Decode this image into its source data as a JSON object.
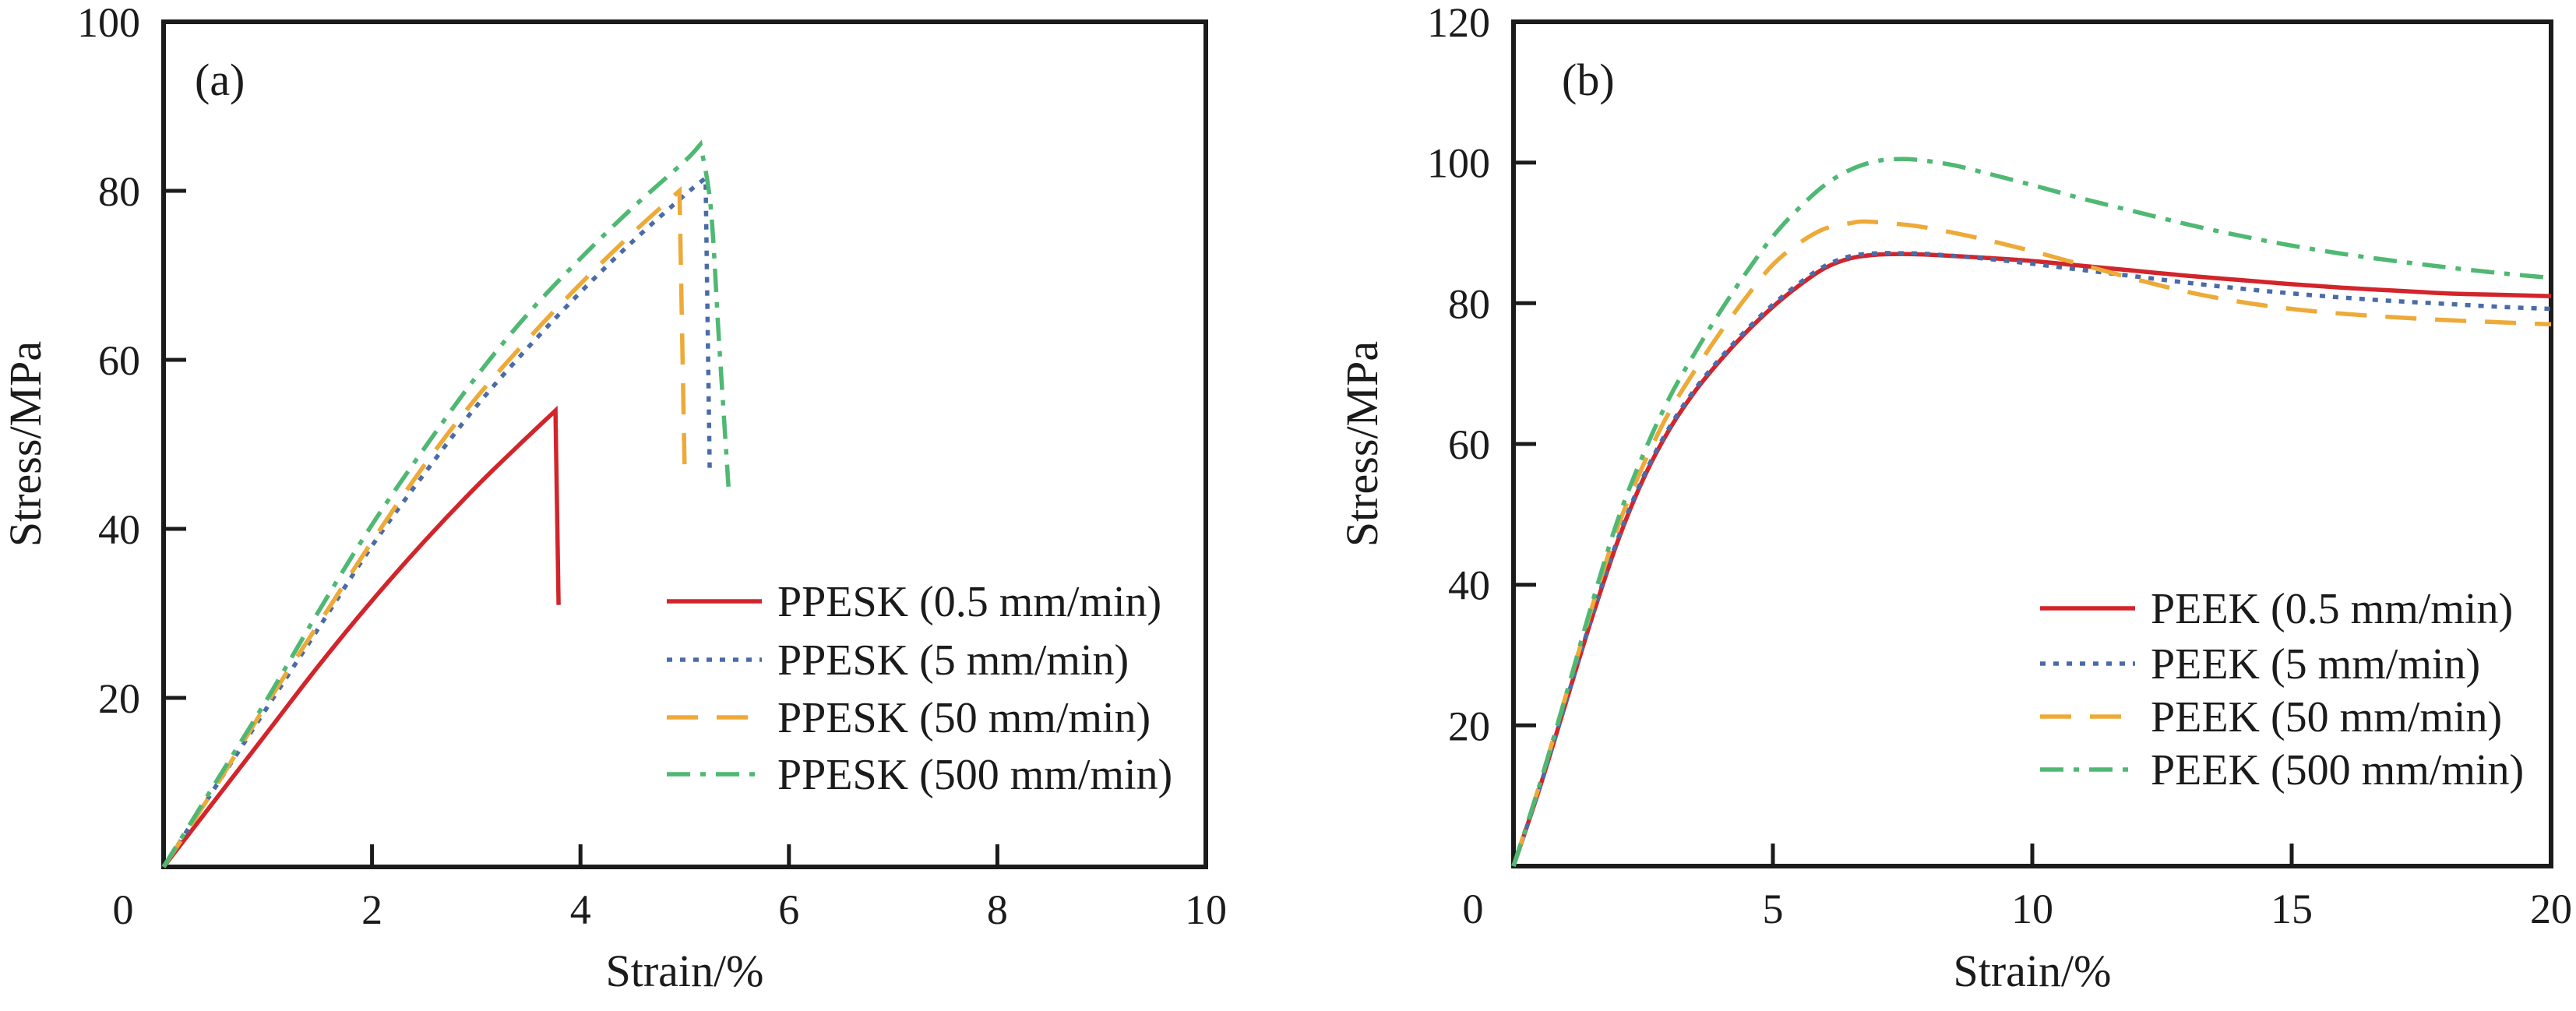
{
  "figure": {
    "background": "#ffffff",
    "frame_color": "#1b1b1b",
    "text_color": "#1b1b1b"
  },
  "chart_data": [
    {
      "panel": "a",
      "type": "line",
      "title": "(a)",
      "xlabel": "Strain/%",
      "ylabel": "Stress/MPa",
      "xlim": [
        0,
        10
      ],
      "ylim": [
        0,
        100
      ],
      "xticks": [
        0,
        2,
        4,
        6,
        8,
        10
      ],
      "yticks": [
        20,
        40,
        60,
        80,
        100
      ],
      "grid": false,
      "legend_position": "lower right",
      "series": [
        {
          "name": "PPESK (0.5 mm/min)",
          "color": "#d2252b",
          "dash": "none",
          "segments": [
            {
              "smooth": true,
              "points": [
                [
                  0,
                  0
                ],
                [
                  0.5,
                  8
                ],
                [
                  1,
                  16
                ],
                [
                  1.5,
                  24
                ],
                [
                  2,
                  31.5
                ],
                [
                  2.5,
                  38.5
                ],
                [
                  3,
                  45
                ],
                [
                  3.4,
                  49.8
                ],
                [
                  3.76,
                  54
                ]
              ]
            },
            {
              "smooth": false,
              "points": [
                [
                  3.76,
                  54
                ],
                [
                  3.79,
                  31
                ]
              ]
            }
          ]
        },
        {
          "name": "PPESK (5 mm/min)",
          "color": "#4a6ba8",
          "dash": "7 10",
          "segments": [
            {
              "smooth": true,
              "points": [
                [
                  0,
                  0
                ],
                [
                  0.5,
                  9.5
                ],
                [
                  1,
                  19
                ],
                [
                  1.5,
                  28.5
                ],
                [
                  2,
                  38
                ],
                [
                  2.5,
                  46.5
                ],
                [
                  3,
                  54.5
                ],
                [
                  3.5,
                  61.5
                ],
                [
                  4,
                  68
                ],
                [
                  4.5,
                  74
                ],
                [
                  5,
                  79.5
                ],
                [
                  5.2,
                  81.5
                ]
              ]
            },
            {
              "smooth": false,
              "points": [
                [
                  5.2,
                  81.5
                ],
                [
                  5.24,
                  47
                ]
              ]
            }
          ]
        },
        {
          "name": "PPESK (50 mm/min)",
          "color": "#edaa38",
          "dash": "40 24",
          "segments": [
            {
              "smooth": true,
              "points": [
                [
                  0,
                  0
                ],
                [
                  0.5,
                  9.5
                ],
                [
                  1,
                  19.5
                ],
                [
                  1.5,
                  29
                ],
                [
                  2,
                  38.5
                ],
                [
                  2.5,
                  47.5
                ],
                [
                  3,
                  55.5
                ],
                [
                  3.5,
                  62.5
                ],
                [
                  4,
                  69
                ],
                [
                  4.5,
                  75
                ],
                [
                  4.95,
                  80
                ]
              ]
            },
            {
              "smooth": false,
              "points": [
                [
                  4.95,
                  80
                ],
                [
                  5.0,
                  46.5
                ]
              ]
            }
          ]
        },
        {
          "name": "PPESK (500 mm/min)",
          "color": "#4fb873",
          "dash": "30 13 7 13",
          "segments": [
            {
              "smooth": true,
              "points": [
                [
                  0,
                  0
                ],
                [
                  0.5,
                  10
                ],
                [
                  1,
                  20
                ],
                [
                  1.5,
                  30.5
                ],
                [
                  2,
                  40.5
                ],
                [
                  2.5,
                  49.5
                ],
                [
                  3,
                  58
                ],
                [
                  3.5,
                  65.5
                ],
                [
                  4,
                  72
                ],
                [
                  4.5,
                  78
                ],
                [
                  5,
                  83.5
                ],
                [
                  5.15,
                  85.5
                ]
              ]
            },
            {
              "smooth": true,
              "points": [
                [
                  5.15,
                  85.5
                ],
                [
                  5.25,
                  78
                ],
                [
                  5.33,
                  62
                ],
                [
                  5.42,
                  45
                ]
              ]
            }
          ]
        }
      ]
    },
    {
      "panel": "b",
      "type": "line",
      "title": "(b)",
      "xlabel": "Strain/%",
      "ylabel": "Stress/MPa",
      "xlim": [
        0,
        20
      ],
      "ylim": [
        0,
        120
      ],
      "xticks": [
        0,
        5,
        10,
        15,
        20
      ],
      "yticks": [
        20,
        40,
        60,
        80,
        100,
        120
      ],
      "grid": false,
      "legend_position": "lower right",
      "series": [
        {
          "name": "PEEK (0.5 mm/min)",
          "color": "#d2252b",
          "dash": "none",
          "segments": [
            {
              "smooth": true,
              "points": [
                [
                  0,
                  0
                ],
                [
                  0.5,
                  11
                ],
                [
                  1,
                  23
                ],
                [
                  1.5,
                  35
                ],
                [
                  2,
                  46
                ],
                [
                  2.5,
                  55
                ],
                [
                  3,
                  62
                ],
                [
                  3.5,
                  67.5
                ],
                [
                  4,
                  72
                ],
                [
                  4.5,
                  76
                ],
                [
                  5,
                  79.5
                ],
                [
                  5.5,
                  82.5
                ],
                [
                  6,
                  85
                ],
                [
                  6.5,
                  86.4
                ],
                [
                  7,
                  86.9
                ],
                [
                  7.5,
                  87
                ],
                [
                  8,
                  86.9
                ],
                [
                  9,
                  86.5
                ],
                [
                  10,
                  86
                ],
                [
                  11,
                  85.3
                ],
                [
                  12,
                  84.6
                ],
                [
                  13,
                  83.9
                ],
                [
                  14,
                  83.3
                ],
                [
                  15,
                  82.7
                ],
                [
                  16,
                  82.2
                ],
                [
                  17,
                  81.8
                ],
                [
                  18,
                  81.4
                ],
                [
                  19,
                  81.2
                ],
                [
                  20,
                  81
                ]
              ]
            }
          ]
        },
        {
          "name": "PEEK (5 mm/min)",
          "color": "#4a6ba8",
          "dash": "7 10",
          "segments": [
            {
              "smooth": true,
              "points": [
                [
                  0,
                  0
                ],
                [
                  0.5,
                  11
                ],
                [
                  1,
                  23
                ],
                [
                  1.5,
                  35.2
                ],
                [
                  2,
                  46.3
                ],
                [
                  2.5,
                  55.3
                ],
                [
                  3,
                  62.3
                ],
                [
                  3.5,
                  67.8
                ],
                [
                  4,
                  72.3
                ],
                [
                  4.5,
                  76.3
                ],
                [
                  5,
                  79.8
                ],
                [
                  5.5,
                  82.8
                ],
                [
                  6,
                  85.3
                ],
                [
                  6.5,
                  86.7
                ],
                [
                  7,
                  87.1
                ],
                [
                  7.5,
                  87.1
                ],
                [
                  8,
                  87
                ],
                [
                  9,
                  86.4
                ],
                [
                  10,
                  85.6
                ],
                [
                  11,
                  84.7
                ],
                [
                  12,
                  83.8
                ],
                [
                  13,
                  82.9
                ],
                [
                  14,
                  82.1
                ],
                [
                  15,
                  81.4
                ],
                [
                  16,
                  80.8
                ],
                [
                  17,
                  80.3
                ],
                [
                  18,
                  79.9
                ],
                [
                  19,
                  79.5
                ],
                [
                  20,
                  79.2
                ]
              ]
            }
          ]
        },
        {
          "name": "PEEK (50 mm/min)",
          "color": "#edaa38",
          "dash": "40 24",
          "segments": [
            {
              "smooth": true,
              "points": [
                [
                  0,
                  0
                ],
                [
                  0.5,
                  11.5
                ],
                [
                  1,
                  24
                ],
                [
                  1.5,
                  36.5
                ],
                [
                  2,
                  48
                ],
                [
                  2.5,
                  57
                ],
                [
                  3,
                  64.5
                ],
                [
                  3.5,
                  70.5
                ],
                [
                  4,
                  76
                ],
                [
                  4.5,
                  81
                ],
                [
                  5,
                  85.5
                ],
                [
                  5.5,
                  88.5
                ],
                [
                  6,
                  90.6
                ],
                [
                  6.5,
                  91.4
                ],
                [
                  6.8,
                  91.6
                ],
                [
                  7.5,
                  91.2
                ],
                [
                  8,
                  90.7
                ],
                [
                  9,
                  89.2
                ],
                [
                  10,
                  87.4
                ],
                [
                  11,
                  85.4
                ],
                [
                  12,
                  83.4
                ],
                [
                  13,
                  81.6
                ],
                [
                  14,
                  80.2
                ],
                [
                  15,
                  79.2
                ],
                [
                  16,
                  78.5
                ],
                [
                  17,
                  78
                ],
                [
                  18,
                  77.6
                ],
                [
                  19,
                  77.3
                ],
                [
                  20,
                  77
                ]
              ]
            }
          ]
        },
        {
          "name": "PEEK (500 mm/min)",
          "color": "#4fb873",
          "dash": "30 13 7 13",
          "segments": [
            {
              "smooth": true,
              "points": [
                [
                  0,
                  0
                ],
                [
                  0.5,
                  11.5
                ],
                [
                  1,
                  24
                ],
                [
                  1.5,
                  37
                ],
                [
                  2,
                  49
                ],
                [
                  2.5,
                  58.5
                ],
                [
                  3,
                  66.5
                ],
                [
                  3.5,
                  73
                ],
                [
                  4,
                  79
                ],
                [
                  4.5,
                  84.5
                ],
                [
                  5,
                  89.5
                ],
                [
                  5.5,
                  93.5
                ],
                [
                  6,
                  96.8
                ],
                [
                  6.5,
                  99
                ],
                [
                  7,
                  100.2
                ],
                [
                  7.5,
                  100.5
                ],
                [
                  8,
                  100.2
                ],
                [
                  8.5,
                  99.6
                ],
                [
                  9,
                  98.7
                ],
                [
                  10,
                  96.8
                ],
                [
                  11,
                  94.8
                ],
                [
                  12,
                  93
                ],
                [
                  13,
                  91.2
                ],
                [
                  14,
                  89.6
                ],
                [
                  15,
                  88.2
                ],
                [
                  16,
                  87
                ],
                [
                  17,
                  86
                ],
                [
                  18,
                  85.1
                ],
                [
                  19,
                  84.3
                ],
                [
                  20,
                  83.6
                ]
              ]
            }
          ]
        }
      ]
    }
  ]
}
